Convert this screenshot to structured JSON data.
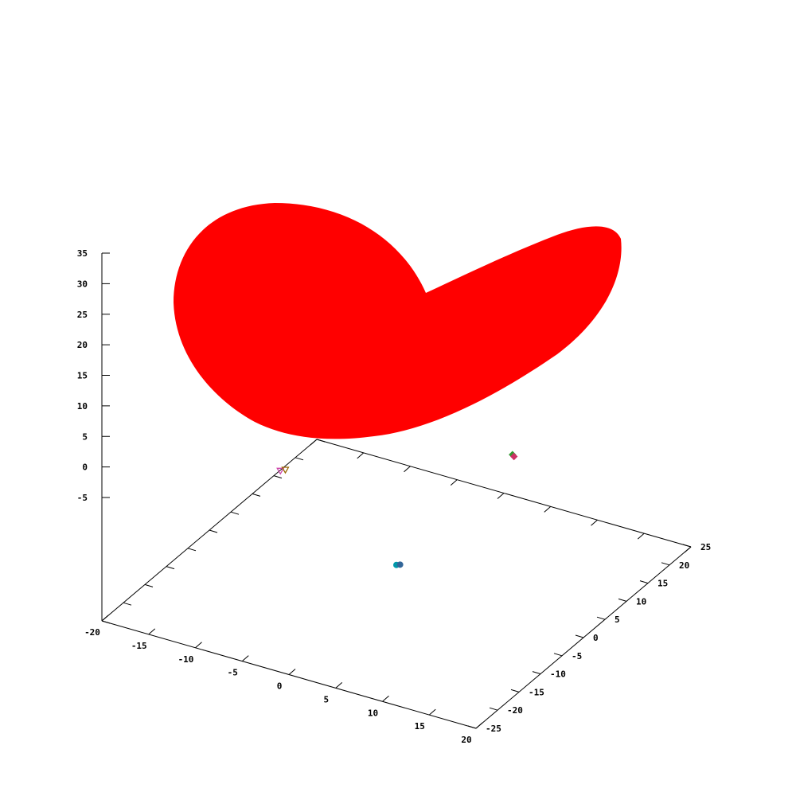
{
  "chart_data": {
    "type": "scatter",
    "title": "",
    "xlabel": "",
    "ylabel": "",
    "zlabel": "",
    "legend": false,
    "grid": false,
    "x_ticks": [
      "-20",
      "-15",
      "-10",
      "-5",
      "0",
      "5",
      "10",
      "15",
      "20"
    ],
    "y_ticks": [
      "-25",
      "-20",
      "-15",
      "-10",
      "-5",
      "0",
      "5",
      "10",
      "15",
      "20",
      "25"
    ],
    "z_ticks": [
      "-5",
      "0",
      "5",
      "10",
      "15",
      "20",
      "25",
      "30",
      "35"
    ],
    "xlim": [
      -20,
      20
    ],
    "ylim": [
      -25,
      25
    ],
    "zlim": [
      -10,
      35
    ],
    "attractor_color": "#ff0000",
    "points": [
      {
        "x": -8.5,
        "y": -8.5,
        "z": 27,
        "color": "#cc44aa",
        "marker": "triangle-down"
      },
      {
        "x": -8.2,
        "y": -8.0,
        "z": 27,
        "color": "#996600",
        "marker": "triangle-down"
      },
      {
        "x": 8.5,
        "y": 8.5,
        "z": 27,
        "color": "#339933",
        "marker": "diamond"
      },
      {
        "x": 8.8,
        "y": 8.2,
        "z": 27,
        "color": "#cc3366",
        "marker": "diamond"
      },
      {
        "x": 0,
        "y": 0,
        "z": 0,
        "color": "#0099aa",
        "marker": "circle"
      },
      {
        "x": 0.3,
        "y": 0.2,
        "z": 0.1,
        "color": "#336699",
        "marker": "circle"
      }
    ]
  }
}
